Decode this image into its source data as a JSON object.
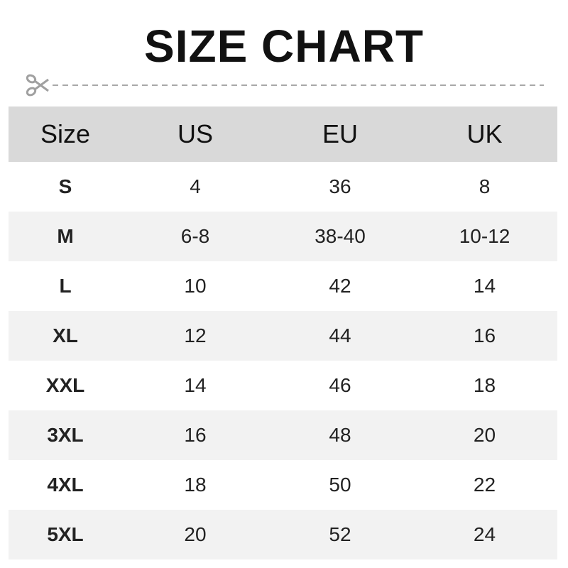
{
  "title": "SIZE CHART",
  "icons": {
    "cut": "scissors-icon"
  },
  "colors": {
    "header_bg": "#d9d9d9",
    "alt_row_bg": "#f2f2f2",
    "icon": "#a0a0a0"
  },
  "table": {
    "headers": [
      "Size",
      "US",
      "EU",
      "UK"
    ],
    "rows": [
      [
        "S",
        "4",
        "36",
        "8"
      ],
      [
        "M",
        "6-8",
        "38-40",
        "10-12"
      ],
      [
        "L",
        "10",
        "42",
        "14"
      ],
      [
        "XL",
        "12",
        "44",
        "16"
      ],
      [
        "XXL",
        "14",
        "46",
        "18"
      ],
      [
        "3XL",
        "16",
        "48",
        "20"
      ],
      [
        "4XL",
        "18",
        "50",
        "22"
      ],
      [
        "5XL",
        "20",
        "52",
        "24"
      ]
    ]
  }
}
